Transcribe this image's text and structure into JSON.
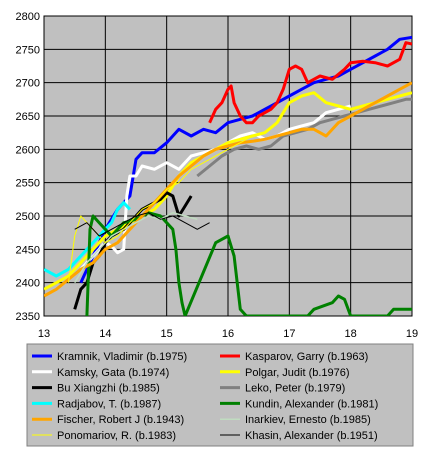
{
  "chart_data": {
    "type": "line",
    "title": "",
    "xlabel": "",
    "ylabel": "",
    "xlim": [
      13,
      19
    ],
    "ylim": [
      2350,
      2800
    ],
    "x_ticks": [
      13,
      14,
      15,
      16,
      17,
      18,
      19
    ],
    "y_ticks": [
      2350,
      2400,
      2450,
      2500,
      2550,
      2600,
      2650,
      2700,
      2750,
      2800
    ],
    "grid": true,
    "legend_position": "bottom",
    "plot_background": "#c0c0c0",
    "series": [
      {
        "name": "Kramnik, Vladimir (b.1975)",
        "color": "#0000ff",
        "width": 3,
        "x": [
          13.6,
          13.8,
          13.9,
          14.0,
          14.2,
          14.4,
          14.5,
          14.6,
          14.8,
          15.0,
          15.2,
          15.4,
          15.6,
          15.8,
          16.0,
          16.2,
          16.4,
          16.6,
          16.8,
          17.0,
          17.2,
          17.4,
          17.6,
          17.8,
          18.0,
          18.2,
          18.4,
          18.6,
          18.8,
          19.0
        ],
        "y": [
          2400,
          2440,
          2460,
          2480,
          2510,
          2530,
          2585,
          2595,
          2595,
          2610,
          2630,
          2620,
          2630,
          2625,
          2640,
          2645,
          2650,
          2660,
          2670,
          2680,
          2690,
          2700,
          2705,
          2710,
          2720,
          2730,
          2740,
          2750,
          2765,
          2768
        ]
      },
      {
        "name": "Kasparov, Garry (b.1963)",
        "color": "#ff0000",
        "width": 3,
        "x": [
          15.7,
          15.8,
          15.9,
          16.0,
          16.05,
          16.1,
          16.2,
          16.3,
          16.4,
          16.5,
          16.6,
          16.7,
          16.8,
          16.9,
          17.0,
          17.1,
          17.2,
          17.3,
          17.5,
          17.7,
          17.9,
          18.0,
          18.2,
          18.4,
          18.6,
          18.8,
          18.9,
          19.0
        ],
        "y": [
          2640,
          2660,
          2670,
          2690,
          2695,
          2670,
          2650,
          2640,
          2640,
          2650,
          2655,
          2660,
          2670,
          2690,
          2720,
          2725,
          2720,
          2700,
          2710,
          2705,
          2720,
          2730,
          2732,
          2730,
          2725,
          2735,
          2760,
          2758
        ]
      },
      {
        "name": "Kamsky, Gata (b.1974)",
        "color": "#ffffff",
        "width": 3,
        "x": [
          13.6,
          13.8,
          14.0,
          14.1,
          14.2,
          14.3,
          14.35,
          14.4,
          14.5,
          14.6,
          14.8,
          15.0,
          15.2,
          15.4,
          15.6,
          15.8,
          16.0,
          16.2,
          16.4,
          16.6,
          16.8,
          17.0,
          17.2,
          17.4,
          17.6,
          17.8,
          18.0
        ],
        "y": [
          2420,
          2440,
          2460,
          2455,
          2445,
          2450,
          2530,
          2560,
          2560,
          2575,
          2570,
          2580,
          2570,
          2590,
          2595,
          2600,
          2610,
          2620,
          2625,
          2615,
          2620,
          2630,
          2635,
          2640,
          2655,
          2660,
          2665
        ]
      },
      {
        "name": "Polgar, Judit (b.1976)",
        "color": "#ffff00",
        "width": 3,
        "x": [
          13.0,
          13.2,
          13.4,
          13.6,
          13.8,
          14.0,
          14.2,
          14.4,
          14.6,
          14.8,
          15.0,
          15.2,
          15.4,
          15.6,
          15.8,
          16.0,
          16.2,
          16.4,
          16.6,
          16.8,
          17.0,
          17.2,
          17.4,
          17.6,
          17.8,
          18.0,
          18.2,
          18.4,
          18.6,
          18.8,
          19.0
        ],
        "y": [
          2390,
          2400,
          2410,
          2430,
          2450,
          2470,
          2480,
          2490,
          2500,
          2510,
          2530,
          2560,
          2580,
          2590,
          2600,
          2610,
          2615,
          2620,
          2625,
          2640,
          2670,
          2680,
          2685,
          2670,
          2665,
          2660,
          2665,
          2670,
          2675,
          2680,
          2685
        ]
      },
      {
        "name": "Bu Xiangzhi (b.1985)",
        "color": "#000000",
        "width": 3,
        "x": [
          13.5,
          13.6,
          13.7,
          13.8,
          13.9,
          14.0,
          14.1,
          14.2,
          14.3,
          14.4,
          14.5,
          14.6,
          14.7,
          14.8,
          14.9,
          15.0,
          15.1,
          15.2,
          15.3,
          15.4
        ],
        "y": [
          2360,
          2390,
          2400,
          2430,
          2440,
          2460,
          2470,
          2475,
          2480,
          2490,
          2500,
          2510,
          2515,
          2520,
          2525,
          2535,
          2530,
          2500,
          2515,
          2530
        ]
      },
      {
        "name": "Leko, Peter (b.1979)",
        "color": "#808080",
        "width": 3,
        "x": [
          15.5,
          15.7,
          15.9,
          16.1,
          16.3,
          16.5,
          16.7,
          16.9,
          17.1,
          17.3,
          17.5,
          17.7,
          17.9,
          18.1,
          18.3,
          18.5,
          18.7,
          18.9,
          19.0
        ],
        "y": [
          2560,
          2575,
          2590,
          2600,
          2605,
          2600,
          2605,
          2620,
          2625,
          2630,
          2640,
          2645,
          2650,
          2655,
          2660,
          2665,
          2670,
          2675,
          2675
        ]
      },
      {
        "name": "Radjabov, T. (b.1987)",
        "color": "#00ffff",
        "width": 3,
        "x": [
          13.0,
          13.2,
          13.4,
          13.6,
          13.8,
          14.0,
          14.1,
          14.2,
          14.3,
          14.4
        ],
        "y": [
          2420,
          2410,
          2420,
          2440,
          2460,
          2480,
          2490,
          2510,
          2520,
          2510
        ]
      },
      {
        "name": "Kundin, Alexander (b.1981)",
        "color": "#008000",
        "width": 3,
        "x": [
          13.7,
          13.75,
          13.8,
          13.9,
          14.0,
          14.1,
          14.2,
          14.3,
          14.5,
          14.7,
          14.9,
          15.1,
          15.15,
          15.2,
          15.25,
          15.3,
          15.8,
          16.0,
          16.1,
          16.15,
          16.2,
          16.3,
          17.3,
          17.4,
          17.7,
          17.8,
          17.9,
          18.0,
          18.6,
          18.7,
          19.0
        ],
        "y": [
          2350,
          2480,
          2500,
          2490,
          2480,
          2470,
          2480,
          2490,
          2495,
          2505,
          2500,
          2480,
          2450,
          2400,
          2370,
          2350,
          2460,
          2470,
          2440,
          2400,
          2360,
          2350,
          2350,
          2360,
          2370,
          2380,
          2375,
          2350,
          2350,
          2360,
          2360
        ]
      },
      {
        "name": "Fischer, Robert J (b.1943)",
        "color": "#ffa500",
        "width": 3,
        "x": [
          13.0,
          13.2,
          13.4,
          13.6,
          13.8,
          14.0,
          14.2,
          14.4,
          14.6,
          14.8,
          15.0,
          15.2,
          15.4,
          15.6,
          15.8,
          16.0,
          16.2,
          16.4,
          16.6,
          16.8,
          17.0,
          17.2,
          17.4,
          17.6,
          17.8,
          18.0,
          18.2,
          18.4,
          18.6,
          18.8,
          19.0
        ],
        "y": [
          2380,
          2390,
          2405,
          2420,
          2430,
          2450,
          2460,
          2480,
          2500,
          2520,
          2540,
          2560,
          2575,
          2590,
          2600,
          2605,
          2610,
          2612,
          2615,
          2620,
          2625,
          2630,
          2630,
          2620,
          2640,
          2650,
          2660,
          2670,
          2680,
          2690,
          2700
        ]
      },
      {
        "name": "Inarkiev, Ernesto (b.1985)",
        "color": "#c0dcc0",
        "width": 1.5,
        "x": [
          13.5,
          13.7,
          13.9,
          14.1,
          14.3,
          14.5,
          14.7,
          14.9,
          15.1,
          15.3,
          15.5
        ],
        "y": [
          2400,
          2430,
          2450,
          2470,
          2480,
          2490,
          2500,
          2495,
          2505,
          2500,
          2495
        ]
      },
      {
        "name": "Ponomariov, R. (b.1983)",
        "color": "#ffff00",
        "width": 1,
        "x": [
          13.4,
          13.5,
          13.6,
          13.8,
          14.0,
          14.2,
          14.4,
          14.6,
          14.8,
          15.0,
          15.2,
          15.4,
          15.6,
          15.8,
          16.0,
          16.2,
          16.4
        ],
        "y": [
          2400,
          2470,
          2500,
          2480,
          2460,
          2470,
          2490,
          2510,
          2520,
          2540,
          2550,
          2570,
          2580,
          2590,
          2600,
          2610,
          2620
        ]
      },
      {
        "name": "Khasin, Alexander (b.1951)",
        "color": "#000000",
        "width": 1,
        "x": [
          13.5,
          13.7,
          13.9,
          14.1,
          14.3,
          14.5,
          14.7,
          14.9,
          15.1,
          15.3,
          15.5,
          15.7
        ],
        "y": [
          2480,
          2490,
          2470,
          2480,
          2490,
          2500,
          2505,
          2495,
          2500,
          2490,
          2480,
          2490
        ]
      }
    ]
  }
}
